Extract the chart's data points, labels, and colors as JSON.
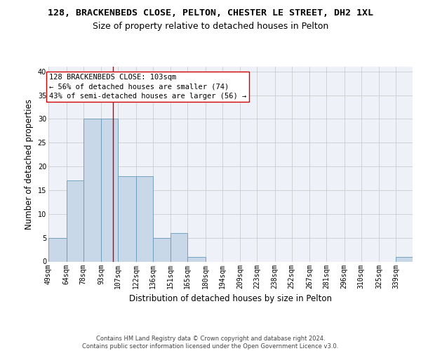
{
  "title_main": "128, BRACKENBEDS CLOSE, PELTON, CHESTER LE STREET, DH2 1XL",
  "title_sub": "Size of property relative to detached houses in Pelton",
  "xlabel": "Distribution of detached houses by size in Pelton",
  "ylabel": "Number of detached properties",
  "bin_labels": [
    "49sqm",
    "64sqm",
    "78sqm",
    "93sqm",
    "107sqm",
    "122sqm",
    "136sqm",
    "151sqm",
    "165sqm",
    "180sqm",
    "194sqm",
    "209sqm",
    "223sqm",
    "238sqm",
    "252sqm",
    "267sqm",
    "281sqm",
    "296sqm",
    "310sqm",
    "325sqm",
    "339sqm"
  ],
  "bin_edges": [
    49,
    64,
    78,
    93,
    107,
    122,
    136,
    151,
    165,
    180,
    194,
    209,
    223,
    238,
    252,
    267,
    281,
    296,
    310,
    325,
    339,
    353
  ],
  "bar_heights": [
    5,
    17,
    30,
    30,
    18,
    18,
    5,
    6,
    1,
    0,
    0,
    0,
    0,
    0,
    0,
    0,
    0,
    0,
    0,
    0,
    1
  ],
  "bar_color": "#c8d8e8",
  "bar_edge_color": "#6699bb",
  "vline_x": 103,
  "vline_color": "#cc0000",
  "annotation_line1": "128 BRACKENBEDS CLOSE: 103sqm",
  "annotation_line2": "← 56% of detached houses are smaller (74)",
  "annotation_line3": "43% of semi-detached houses are larger (56) →",
  "annotation_box_color": "white",
  "annotation_box_edge_color": "#cc0000",
  "ylim": [
    0,
    41
  ],
  "yticks": [
    0,
    5,
    10,
    15,
    20,
    25,
    30,
    35,
    40
  ],
  "grid_color": "#cccccc",
  "background_color": "#eef2f8",
  "footer_text": "Contains HM Land Registry data © Crown copyright and database right 2024.\nContains public sector information licensed under the Open Government Licence v3.0.",
  "title_fontsize": 9.5,
  "subtitle_fontsize": 9,
  "axis_label_fontsize": 8.5,
  "tick_fontsize": 7,
  "annotation_fontsize": 7.5,
  "footer_fontsize": 6
}
